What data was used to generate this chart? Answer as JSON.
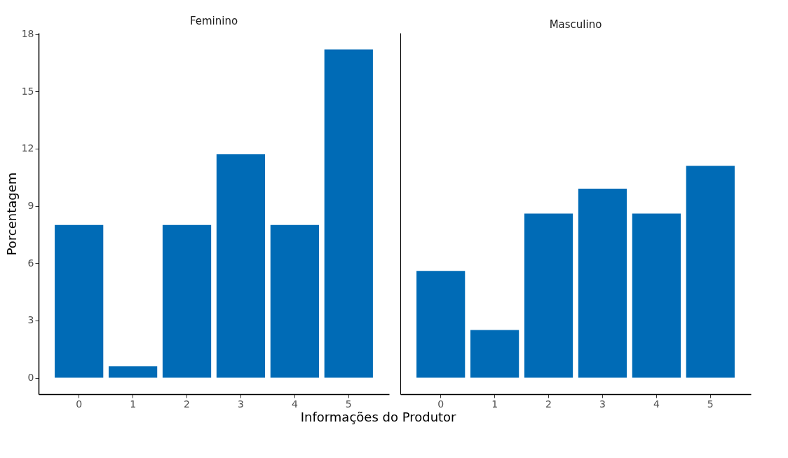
{
  "chart_data": [
    {
      "type": "bar",
      "title": "Feminino",
      "xlabel": "Informações do Produtor",
      "ylabel": "Porcentagem",
      "categories": [
        "0",
        "1",
        "2",
        "3",
        "4",
        "5"
      ],
      "values": [
        8.0,
        0.6,
        8.0,
        11.7,
        8.0,
        17.2
      ],
      "color": "#006bb6",
      "ylim": [
        -0.86,
        18.06
      ],
      "yticks": [
        0,
        3,
        6,
        9,
        12,
        15,
        18
      ],
      "grid": false
    },
    {
      "type": "bar",
      "title": "Masculino",
      "categories": [
        "0",
        "1",
        "2",
        "3",
        "4",
        "5"
      ],
      "values": [
        5.6,
        2.5,
        8.6,
        9.9,
        8.6,
        11.1
      ],
      "color": "#006bb6",
      "ylim": [
        -0.86,
        18.06
      ],
      "yticks": [
        0,
        3,
        6,
        9,
        12,
        15,
        18
      ],
      "grid": false,
      "tick_labels": "x"
    }
  ]
}
